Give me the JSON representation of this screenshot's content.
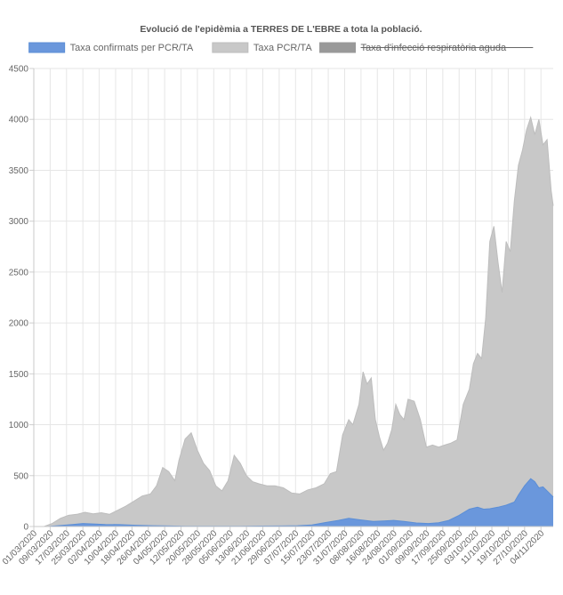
{
  "chart_data": {
    "type": "area",
    "title": "Evolució de l'epidèmia a TERRES DE L'EBRE a tota la població.",
    "ylim": [
      0,
      4500
    ],
    "yticks": [
      0,
      500,
      1000,
      1500,
      2000,
      2500,
      3000,
      3500,
      4000,
      4500
    ],
    "x_start": "2020-03-01",
    "x_end": "2020-11-10",
    "xtick_labels": [
      "01/03/2020",
      "09/03/2020",
      "17/03/2020",
      "25/03/2020",
      "02/04/2020",
      "10/04/2020",
      "18/04/2020",
      "26/04/2020",
      "04/05/2020",
      "12/05/2020",
      "20/05/2020",
      "28/05/2020",
      "05/06/2020",
      "13/06/2020",
      "21/06/2020",
      "29/06/2020",
      "07/07/2020",
      "15/07/2020",
      "23/07/2020",
      "31/07/2020",
      "08/08/2020",
      "16/08/2020",
      "24/08/2020",
      "01/09/2020",
      "09/09/2020",
      "17/09/2020",
      "25/09/2020",
      "03/10/2020",
      "11/10/2020",
      "19/10/2020",
      "27/10/2020",
      "04/11/2020"
    ],
    "grid": true,
    "legend_position": "top",
    "series": [
      {
        "name": "Taxa confirmats per PCR/TA",
        "color": "#5b8ed6",
        "fill": "#6a97dc",
        "hidden": false,
        "points": [
          [
            "2020-03-01",
            0
          ],
          [
            "2020-03-08",
            0
          ],
          [
            "2020-03-14",
            10
          ],
          [
            "2020-03-20",
            20
          ],
          [
            "2020-03-25",
            30
          ],
          [
            "2020-03-30",
            25
          ],
          [
            "2020-04-05",
            20
          ],
          [
            "2020-04-12",
            18
          ],
          [
            "2020-04-20",
            12
          ],
          [
            "2020-04-28",
            8
          ],
          [
            "2020-05-06",
            5
          ],
          [
            "2020-05-14",
            3
          ],
          [
            "2020-05-22",
            3
          ],
          [
            "2020-06-01",
            2
          ],
          [
            "2020-06-10",
            2
          ],
          [
            "2020-06-20",
            4
          ],
          [
            "2020-06-30",
            5
          ],
          [
            "2020-07-08",
            8
          ],
          [
            "2020-07-15",
            15
          ],
          [
            "2020-07-22",
            40
          ],
          [
            "2020-07-28",
            60
          ],
          [
            "2020-08-02",
            80
          ],
          [
            "2020-08-08",
            65
          ],
          [
            "2020-08-14",
            50
          ],
          [
            "2020-08-19",
            55
          ],
          [
            "2020-08-24",
            60
          ],
          [
            "2020-08-29",
            50
          ],
          [
            "2020-09-04",
            35
          ],
          [
            "2020-09-10",
            30
          ],
          [
            "2020-09-15",
            38
          ],
          [
            "2020-09-20",
            60
          ],
          [
            "2020-09-25",
            110
          ],
          [
            "2020-09-30",
            170
          ],
          [
            "2020-10-04",
            190
          ],
          [
            "2020-10-07",
            170
          ],
          [
            "2020-10-10",
            175
          ],
          [
            "2020-10-14",
            190
          ],
          [
            "2020-10-18",
            210
          ],
          [
            "2020-10-22",
            240
          ],
          [
            "2020-10-24",
            310
          ],
          [
            "2020-10-27",
            400
          ],
          [
            "2020-10-30",
            470
          ],
          [
            "2020-11-01",
            440
          ],
          [
            "2020-11-03",
            380
          ],
          [
            "2020-11-05",
            390
          ],
          [
            "2020-11-08",
            330
          ],
          [
            "2020-11-10",
            290
          ]
        ]
      },
      {
        "name": "Taxa PCR/TA",
        "color": "#bdbdbd",
        "fill": "#c8c8c8",
        "hidden": false,
        "points": [
          [
            "2020-03-01",
            0
          ],
          [
            "2020-03-06",
            0
          ],
          [
            "2020-03-10",
            30
          ],
          [
            "2020-03-14",
            80
          ],
          [
            "2020-03-18",
            110
          ],
          [
            "2020-03-22",
            120
          ],
          [
            "2020-03-26",
            140
          ],
          [
            "2020-03-30",
            125
          ],
          [
            "2020-04-03",
            135
          ],
          [
            "2020-04-07",
            120
          ],
          [
            "2020-04-11",
            160
          ],
          [
            "2020-04-15",
            200
          ],
          [
            "2020-04-19",
            250
          ],
          [
            "2020-04-23",
            300
          ],
          [
            "2020-04-27",
            320
          ],
          [
            "2020-04-30",
            400
          ],
          [
            "2020-05-03",
            580
          ],
          [
            "2020-05-06",
            540
          ],
          [
            "2020-05-09",
            450
          ],
          [
            "2020-05-11",
            650
          ],
          [
            "2020-05-14",
            860
          ],
          [
            "2020-05-17",
            920
          ],
          [
            "2020-05-20",
            750
          ],
          [
            "2020-05-23",
            620
          ],
          [
            "2020-05-26",
            550
          ],
          [
            "2020-05-29",
            400
          ],
          [
            "2020-06-01",
            350
          ],
          [
            "2020-06-04",
            450
          ],
          [
            "2020-06-07",
            700
          ],
          [
            "2020-06-10",
            620
          ],
          [
            "2020-06-13",
            500
          ],
          [
            "2020-06-16",
            440
          ],
          [
            "2020-06-19",
            420
          ],
          [
            "2020-06-23",
            400
          ],
          [
            "2020-06-27",
            400
          ],
          [
            "2020-07-01",
            380
          ],
          [
            "2020-07-05",
            330
          ],
          [
            "2020-07-09",
            320
          ],
          [
            "2020-07-13",
            360
          ],
          [
            "2020-07-17",
            380
          ],
          [
            "2020-07-21",
            420
          ],
          [
            "2020-07-24",
            520
          ],
          [
            "2020-07-27",
            540
          ],
          [
            "2020-07-30",
            900
          ],
          [
            "2020-08-02",
            1050
          ],
          [
            "2020-08-04",
            1000
          ],
          [
            "2020-08-07",
            1200
          ],
          [
            "2020-08-09",
            1520
          ],
          [
            "2020-08-11",
            1400
          ],
          [
            "2020-08-13",
            1460
          ],
          [
            "2020-08-15",
            1050
          ],
          [
            "2020-08-17",
            880
          ],
          [
            "2020-08-19",
            750
          ],
          [
            "2020-08-21",
            820
          ],
          [
            "2020-08-23",
            950
          ],
          [
            "2020-08-25",
            1200
          ],
          [
            "2020-08-27",
            1100
          ],
          [
            "2020-08-29",
            1050
          ],
          [
            "2020-08-31",
            1250
          ],
          [
            "2020-09-03",
            1230
          ],
          [
            "2020-09-06",
            1050
          ],
          [
            "2020-09-09",
            780
          ],
          [
            "2020-09-12",
            800
          ],
          [
            "2020-09-15",
            780
          ],
          [
            "2020-09-18",
            800
          ],
          [
            "2020-09-21",
            820
          ],
          [
            "2020-09-24",
            850
          ],
          [
            "2020-09-27",
            1200
          ],
          [
            "2020-09-30",
            1350
          ],
          [
            "2020-10-02",
            1600
          ],
          [
            "2020-10-04",
            1700
          ],
          [
            "2020-10-06",
            1650
          ],
          [
            "2020-10-08",
            2050
          ],
          [
            "2020-10-10",
            2800
          ],
          [
            "2020-10-12",
            2950
          ],
          [
            "2020-10-14",
            2600
          ],
          [
            "2020-10-16",
            2300
          ],
          [
            "2020-10-18",
            2800
          ],
          [
            "2020-10-20",
            2700
          ],
          [
            "2020-10-22",
            3200
          ],
          [
            "2020-10-24",
            3550
          ],
          [
            "2020-10-26",
            3700
          ],
          [
            "2020-10-28",
            3900
          ],
          [
            "2020-10-30",
            4020
          ],
          [
            "2020-11-01",
            3850
          ],
          [
            "2020-11-03",
            4000
          ],
          [
            "2020-11-05",
            3750
          ],
          [
            "2020-11-07",
            3800
          ],
          [
            "2020-11-09",
            3300
          ],
          [
            "2020-11-10",
            3150
          ]
        ]
      },
      {
        "name": "Taxa d'infecció respiratòria aguda",
        "color": "#999999",
        "fill": "#999999",
        "hidden": true,
        "points": []
      }
    ]
  }
}
